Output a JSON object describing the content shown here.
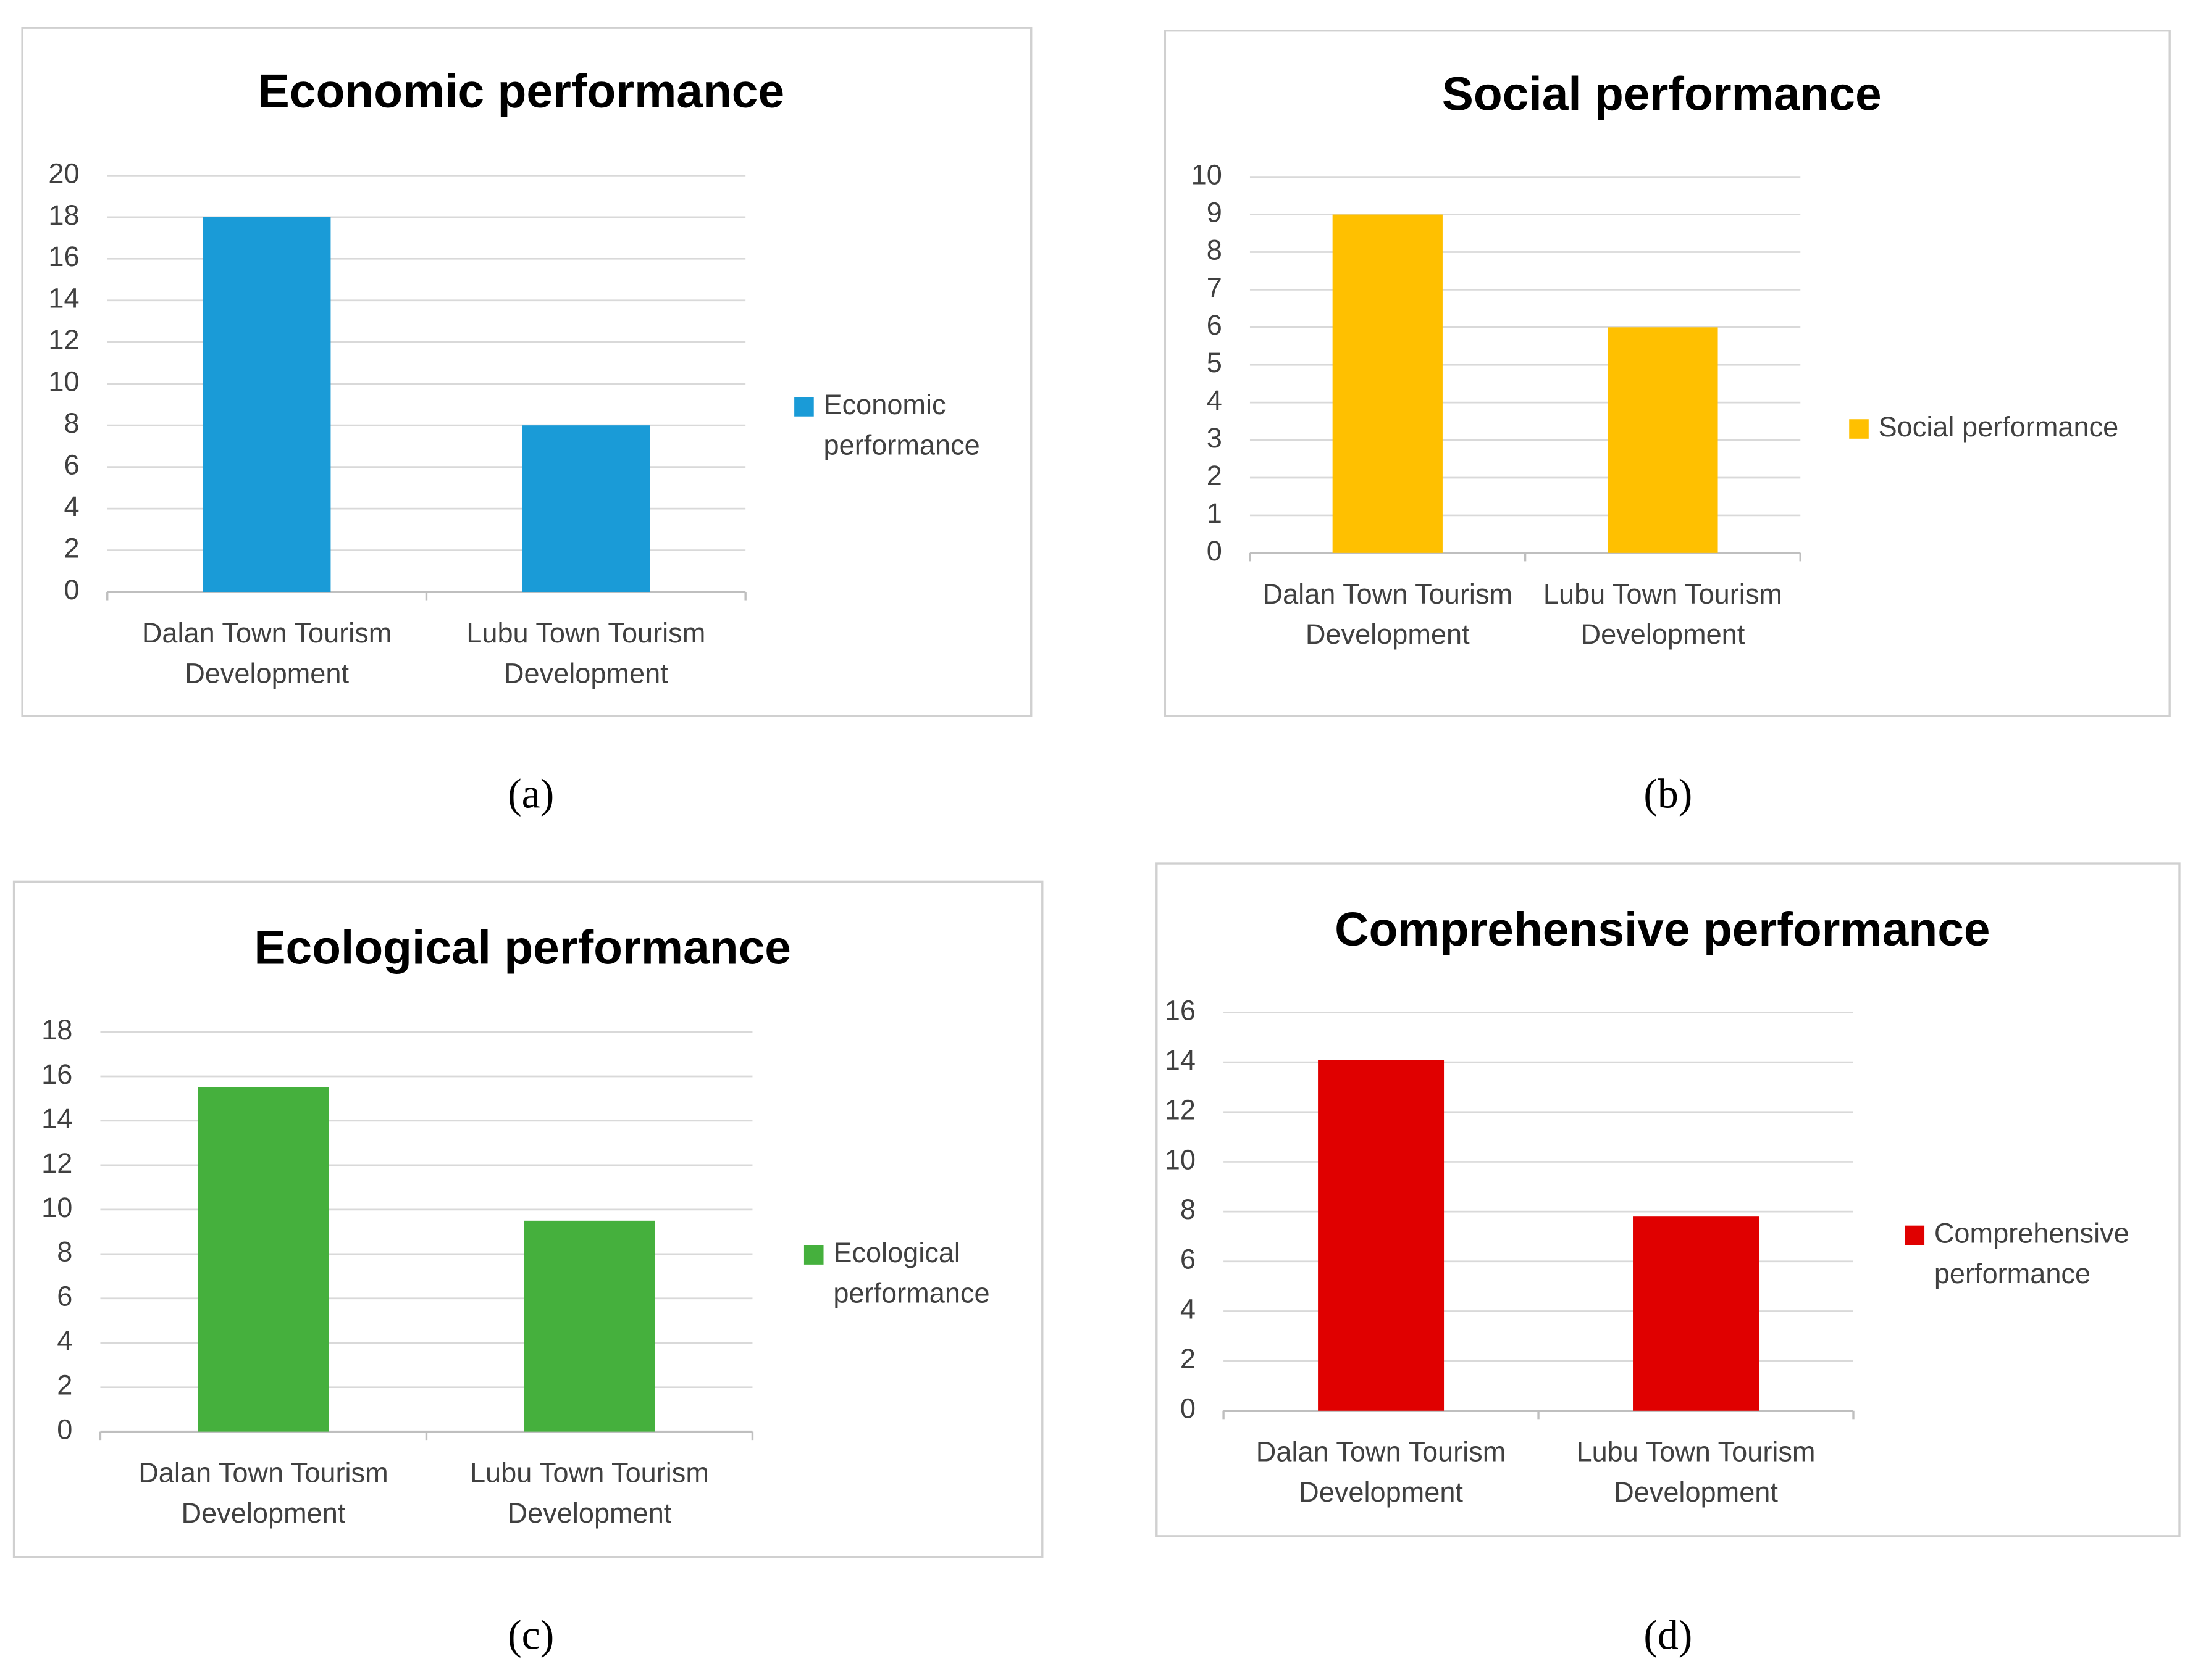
{
  "chart_data": [
    {
      "type": "bar",
      "title": "Economic performance",
      "caption": "(a)",
      "categories": [
        "Dalan Town Tourism Development",
        "Lubu Town Tourism Development"
      ],
      "series": [
        {
          "name": "Economic performance",
          "color": "#1a9bd7",
          "values": [
            18,
            8
          ]
        }
      ],
      "ylim": [
        0,
        20
      ],
      "yticks": [
        0,
        2,
        4,
        6,
        8,
        10,
        12,
        14,
        16,
        18,
        20
      ],
      "grid": true,
      "legend": "right"
    },
    {
      "type": "bar",
      "title": "Social performance",
      "caption": "(b)",
      "categories": [
        "Dalan Town Tourism Development",
        "Lubu Town Tourism Development"
      ],
      "series": [
        {
          "name": "Social performance",
          "color": "#ffc000",
          "values": [
            9,
            6
          ]
        }
      ],
      "ylim": [
        0,
        10
      ],
      "yticks": [
        0,
        1,
        2,
        3,
        4,
        5,
        6,
        7,
        8,
        9,
        10
      ],
      "grid": true,
      "legend": "right"
    },
    {
      "type": "bar",
      "title": "Ecological performance",
      "caption": "(c)",
      "categories": [
        "Dalan Town Tourism Development",
        "Lubu Town Tourism Development"
      ],
      "series": [
        {
          "name": "Ecological performance",
          "color": "#45b03d",
          "values": [
            15.5,
            9.5
          ]
        }
      ],
      "ylim": [
        0,
        18
      ],
      "yticks": [
        0,
        2,
        4,
        6,
        8,
        10,
        12,
        14,
        16,
        18
      ],
      "grid": true,
      "legend": "right"
    },
    {
      "type": "bar",
      "title": "Comprehensive performance",
      "caption": "(d)",
      "categories": [
        "Dalan Town Tourism Development",
        "Lubu Town Tourism Development"
      ],
      "series": [
        {
          "name": "Comprehensive performance",
          "color": "#e00000",
          "values": [
            14.1,
            7.8
          ]
        }
      ],
      "ylim": [
        0,
        16
      ],
      "yticks": [
        0,
        2,
        4,
        6,
        8,
        10,
        12,
        14,
        16
      ],
      "grid": true,
      "legend": "right"
    }
  ]
}
